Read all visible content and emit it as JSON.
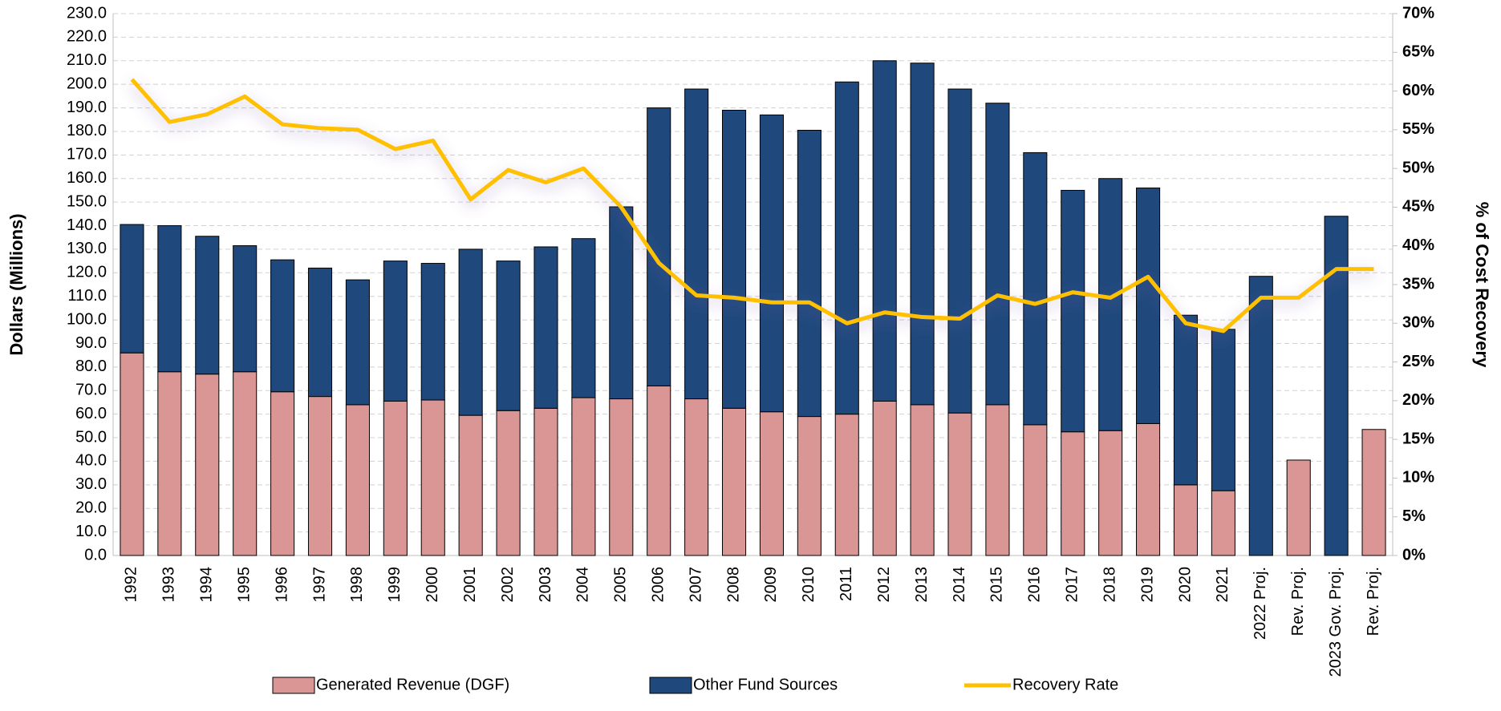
{
  "chart_data": {
    "type": "bar",
    "stacked": true,
    "ylabel": "Dollars (Millions)",
    "y2label": "% of Cost Recovery",
    "categories": [
      "1992",
      "1993",
      "1994",
      "1995",
      "1996",
      "1997",
      "1998",
      "1999",
      "2000",
      "2001",
      "2002",
      "2003",
      "2004",
      "2005",
      "2006",
      "2007",
      "2008",
      "2009",
      "2010",
      "2011",
      "2012",
      "2013",
      "2014",
      "2015",
      "2016",
      "2017",
      "2018",
      "2019",
      "2020",
      "2021",
      "2022 Proj.",
      "Rev. Proj.",
      "2023 Gov. Proj.",
      "Rev. Proj."
    ],
    "series": [
      {
        "name": "Generated Revenue (DGF)",
        "type": "bar",
        "color": "#d99694",
        "values": [
          86,
          78,
          77,
          78,
          69.5,
          67.5,
          64,
          65.5,
          66,
          59.5,
          61.5,
          62.5,
          67,
          66.5,
          72,
          66.5,
          62.5,
          61,
          59,
          60,
          65.5,
          64,
          60.5,
          64,
          55.5,
          52.5,
          53,
          56,
          30,
          27.5,
          null,
          40.5,
          null,
          53.5
        ]
      },
      {
        "name": "Other Fund Sources",
        "type": "bar",
        "color": "#1f497d",
        "values": [
          54.5,
          62,
          58.5,
          53.5,
          56,
          54.5,
          53,
          59.5,
          58,
          70.5,
          63.5,
          68.5,
          67.5,
          81.5,
          118,
          131.5,
          126.5,
          126,
          121.5,
          141,
          144.5,
          145,
          137.5,
          128,
          115.5,
          102.5,
          107,
          100,
          72,
          68.5,
          118.5,
          null,
          144,
          null
        ]
      },
      {
        "name": "Recovery Rate",
        "type": "line",
        "axis": "y2",
        "color": "#ffc000",
        "values": [
          61.5,
          56,
          57,
          59.3,
          55.7,
          55.2,
          55,
          52.5,
          53.6,
          46,
          49.8,
          48.2,
          50,
          45,
          37.8,
          33.6,
          33.3,
          32.7,
          32.7,
          30,
          31.4,
          30.8,
          30.6,
          33.6,
          32.5,
          34,
          33.3,
          36,
          30,
          29,
          33.3,
          33.3,
          37,
          37
        ]
      }
    ],
    "ylim": [
      0,
      230
    ],
    "yticks": [
      {
        "value": 0,
        "label": "0.0"
      },
      {
        "value": 10,
        "label": "10.0"
      },
      {
        "value": 20,
        "label": "20.0"
      },
      {
        "value": 30,
        "label": "30.0"
      },
      {
        "value": 40,
        "label": "40.0"
      },
      {
        "value": 50,
        "label": "50.0"
      },
      {
        "value": 60,
        "label": "60.0"
      },
      {
        "value": 70,
        "label": "70.0"
      },
      {
        "value": 80,
        "label": "80.0"
      },
      {
        "value": 90,
        "label": "90.0"
      },
      {
        "value": 100,
        "label": "100.0"
      },
      {
        "value": 110,
        "label": "110.0"
      },
      {
        "value": 120,
        "label": "120.0"
      },
      {
        "value": 130,
        "label": "130.0"
      },
      {
        "value": 140,
        "label": "140.0"
      },
      {
        "value": 150,
        "label": "150.0"
      },
      {
        "value": 160,
        "label": "160.0"
      },
      {
        "value": 170,
        "label": "170.0"
      },
      {
        "value": 180,
        "label": "180.0"
      },
      {
        "value": 190,
        "label": "190.0"
      },
      {
        "value": 200,
        "label": "200.0"
      },
      {
        "value": 210,
        "label": "210.0"
      },
      {
        "value": 220,
        "label": "220.0"
      },
      {
        "value": 230,
        "label": "230.0"
      }
    ],
    "y2lim": [
      0,
      70
    ],
    "y2ticks": [
      {
        "value": 0,
        "label": "0%"
      },
      {
        "value": 5,
        "label": "5%"
      },
      {
        "value": 10,
        "label": "10%"
      },
      {
        "value": 15,
        "label": "15%"
      },
      {
        "value": 20,
        "label": "20%"
      },
      {
        "value": 25,
        "label": "25%"
      },
      {
        "value": 30,
        "label": "30%"
      },
      {
        "value": 35,
        "label": "35%"
      },
      {
        "value": 40,
        "label": "40%"
      },
      {
        "value": 45,
        "label": "45%"
      },
      {
        "value": 50,
        "label": "50%"
      },
      {
        "value": 55,
        "label": "55%"
      },
      {
        "value": 60,
        "label": "60%"
      },
      {
        "value": 65,
        "label": "65%"
      },
      {
        "value": 70,
        "label": "70%"
      }
    ],
    "grid": true,
    "legend": "bottom"
  }
}
